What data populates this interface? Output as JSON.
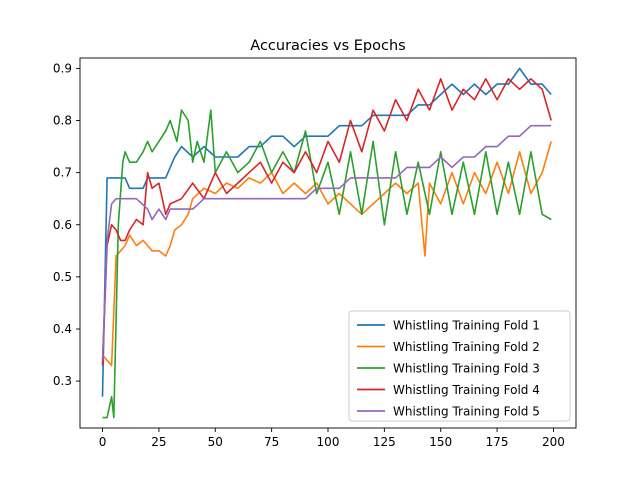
{
  "chart_data": {
    "type": "line",
    "title": "Accuracies vs Epochs",
    "xlabel": "",
    "ylabel": "",
    "xlim": [
      -10,
      210
    ],
    "ylim": [
      0.21,
      0.92
    ],
    "x_ticks": [
      0,
      25,
      50,
      75,
      100,
      125,
      150,
      175,
      200
    ],
    "y_ticks": [
      0.3,
      0.4,
      0.5,
      0.6,
      0.7,
      0.8,
      0.9
    ],
    "grid": false,
    "legend_position": "lower-right",
    "series": [
      {
        "name": "Whistling Training Fold 1",
        "color": "#1f77b4",
        "x": [
          0,
          2,
          5,
          10,
          12,
          15,
          18,
          20,
          22,
          25,
          28,
          30,
          32,
          35,
          40,
          45,
          50,
          55,
          60,
          65,
          70,
          75,
          80,
          85,
          90,
          95,
          100,
          105,
          110,
          115,
          120,
          125,
          130,
          135,
          140,
          145,
          150,
          155,
          160,
          165,
          170,
          175,
          180,
          185,
          190,
          195,
          199
        ],
        "y": [
          0.27,
          0.69,
          0.69,
          0.69,
          0.67,
          0.67,
          0.67,
          0.69,
          0.69,
          0.69,
          0.69,
          0.71,
          0.73,
          0.75,
          0.73,
          0.75,
          0.73,
          0.73,
          0.73,
          0.75,
          0.75,
          0.77,
          0.77,
          0.75,
          0.77,
          0.77,
          0.77,
          0.79,
          0.79,
          0.79,
          0.81,
          0.81,
          0.81,
          0.81,
          0.83,
          0.83,
          0.85,
          0.87,
          0.85,
          0.87,
          0.85,
          0.87,
          0.87,
          0.9,
          0.87,
          0.87,
          0.85
        ]
      },
      {
        "name": "Whistling Training Fold 2",
        "color": "#ff7f0e",
        "x": [
          0,
          2,
          4,
          6,
          8,
          10,
          12,
          15,
          18,
          20,
          22,
          25,
          28,
          30,
          32,
          35,
          38,
          40,
          45,
          50,
          55,
          60,
          65,
          70,
          75,
          80,
          85,
          90,
          95,
          100,
          105,
          110,
          115,
          120,
          125,
          130,
          135,
          140,
          143,
          145,
          150,
          155,
          160,
          165,
          170,
          175,
          180,
          185,
          190,
          195,
          199
        ],
        "y": [
          0.35,
          0.34,
          0.33,
          0.54,
          0.55,
          0.56,
          0.58,
          0.56,
          0.57,
          0.56,
          0.55,
          0.55,
          0.54,
          0.56,
          0.59,
          0.6,
          0.62,
          0.65,
          0.67,
          0.66,
          0.68,
          0.67,
          0.69,
          0.68,
          0.7,
          0.66,
          0.68,
          0.66,
          0.68,
          0.64,
          0.66,
          0.64,
          0.62,
          0.64,
          0.66,
          0.68,
          0.66,
          0.68,
          0.54,
          0.68,
          0.64,
          0.7,
          0.64,
          0.7,
          0.66,
          0.72,
          0.66,
          0.74,
          0.66,
          0.7,
          0.76
        ]
      },
      {
        "name": "Whistling Training Fold 3",
        "color": "#2ca02c",
        "x": [
          0,
          2,
          4,
          5,
          7,
          9,
          10,
          12,
          15,
          18,
          20,
          22,
          25,
          28,
          30,
          33,
          35,
          38,
          40,
          42,
          45,
          48,
          50,
          55,
          60,
          65,
          70,
          75,
          80,
          85,
          90,
          95,
          100,
          105,
          110,
          115,
          120,
          125,
          130,
          135,
          140,
          145,
          150,
          155,
          160,
          165,
          170,
          175,
          180,
          185,
          190,
          195,
          199
        ],
        "y": [
          0.23,
          0.23,
          0.27,
          0.23,
          0.6,
          0.72,
          0.74,
          0.72,
          0.72,
          0.74,
          0.76,
          0.74,
          0.76,
          0.78,
          0.8,
          0.76,
          0.82,
          0.8,
          0.72,
          0.76,
          0.72,
          0.82,
          0.7,
          0.74,
          0.7,
          0.72,
          0.76,
          0.7,
          0.74,
          0.7,
          0.78,
          0.66,
          0.72,
          0.62,
          0.74,
          0.62,
          0.76,
          0.6,
          0.74,
          0.62,
          0.72,
          0.62,
          0.74,
          0.62,
          0.72,
          0.62,
          0.74,
          0.62,
          0.72,
          0.62,
          0.74,
          0.62,
          0.61
        ]
      },
      {
        "name": "Whistling Training Fold 4",
        "color": "#d62728",
        "x": [
          0,
          2,
          4,
          6,
          8,
          10,
          12,
          15,
          18,
          20,
          22,
          25,
          28,
          30,
          35,
          40,
          45,
          50,
          55,
          60,
          65,
          70,
          75,
          80,
          85,
          90,
          95,
          100,
          105,
          110,
          115,
          120,
          125,
          130,
          135,
          140,
          145,
          150,
          155,
          160,
          165,
          170,
          175,
          180,
          185,
          190,
          195,
          199
        ],
        "y": [
          0.33,
          0.56,
          0.6,
          0.59,
          0.57,
          0.57,
          0.59,
          0.61,
          0.6,
          0.7,
          0.67,
          0.68,
          0.62,
          0.64,
          0.65,
          0.68,
          0.65,
          0.7,
          0.66,
          0.68,
          0.7,
          0.72,
          0.68,
          0.72,
          0.7,
          0.74,
          0.7,
          0.76,
          0.72,
          0.8,
          0.74,
          0.82,
          0.78,
          0.84,
          0.8,
          0.86,
          0.82,
          0.88,
          0.82,
          0.86,
          0.84,
          0.88,
          0.84,
          0.88,
          0.86,
          0.88,
          0.86,
          0.8
        ]
      },
      {
        "name": "Whistling Training Fold 5",
        "color": "#9467bd",
        "x": [
          0,
          2,
          4,
          6,
          10,
          15,
          20,
          22,
          25,
          28,
          30,
          35,
          40,
          45,
          50,
          55,
          60,
          65,
          70,
          75,
          80,
          85,
          90,
          95,
          100,
          105,
          110,
          115,
          120,
          125,
          130,
          135,
          140,
          145,
          150,
          155,
          160,
          165,
          170,
          175,
          180,
          185,
          190,
          195,
          199
        ],
        "y": [
          0.34,
          0.57,
          0.64,
          0.65,
          0.65,
          0.65,
          0.63,
          0.61,
          0.63,
          0.61,
          0.63,
          0.63,
          0.63,
          0.65,
          0.65,
          0.65,
          0.65,
          0.65,
          0.65,
          0.65,
          0.65,
          0.65,
          0.65,
          0.67,
          0.67,
          0.67,
          0.69,
          0.69,
          0.69,
          0.69,
          0.69,
          0.71,
          0.71,
          0.71,
          0.73,
          0.71,
          0.73,
          0.73,
          0.75,
          0.75,
          0.77,
          0.77,
          0.79,
          0.79,
          0.79
        ]
      }
    ]
  }
}
